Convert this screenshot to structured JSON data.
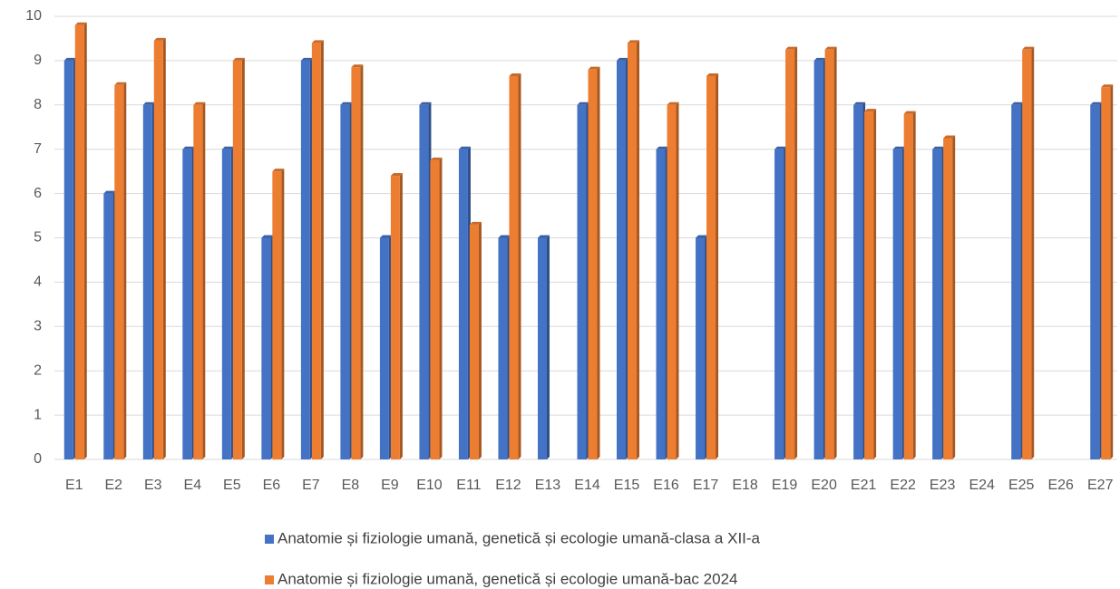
{
  "chart_data": {
    "type": "bar",
    "categories": [
      "E1",
      "E2",
      "E3",
      "E4",
      "E5",
      "E6",
      "E7",
      "E8",
      "E9",
      "E10",
      "E11",
      "E12",
      "E13",
      "E14",
      "E15",
      "E16",
      "E17",
      "E18",
      "E19",
      "E20",
      "E21",
      "E22",
      "E23",
      "E24",
      "E25",
      "E26",
      "E27"
    ],
    "series": [
      {
        "name": "Anatomie și fiziologie umană, genetică și ecologie umană-clasa a XII-a",
        "color": "#4472c4",
        "values": [
          9,
          6,
          8,
          7,
          7,
          5,
          9,
          8,
          5,
          8,
          7,
          5,
          5,
          8,
          9,
          7,
          5,
          null,
          7,
          9,
          8,
          7,
          7,
          null,
          8,
          null,
          8
        ]
      },
      {
        "name": "Anatomie și fiziologie umană, genetică și ecologie umană-bac 2024",
        "color": "#ed7d31",
        "values": [
          9.8,
          8.45,
          9.45,
          8.0,
          9.0,
          6.5,
          9.4,
          8.85,
          6.4,
          6.75,
          5.3,
          8.65,
          null,
          8.8,
          9.4,
          8.0,
          8.65,
          null,
          9.25,
          9.25,
          7.85,
          7.8,
          7.25,
          null,
          9.25,
          null,
          8.4
        ]
      }
    ],
    "ylim": [
      0,
      10
    ],
    "yticks": [
      0,
      1,
      2,
      3,
      4,
      5,
      6,
      7,
      8,
      9,
      10
    ],
    "grid": true,
    "legend": "bottom"
  }
}
